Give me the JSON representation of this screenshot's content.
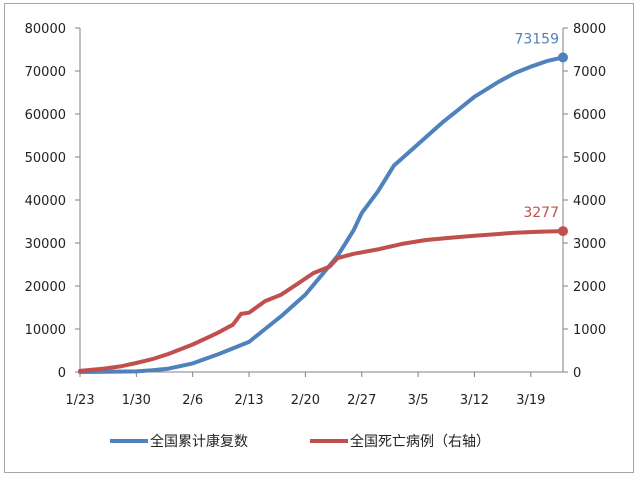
{
  "chart_data": {
    "type": "line",
    "x_tick_labels": [
      "1/23",
      "1/30",
      "2/6",
      "2/13",
      "2/20",
      "2/27",
      "3/5",
      "3/12",
      "3/19"
    ],
    "x_start": "1/23",
    "x_end": "3/23",
    "y_left": {
      "min": 0,
      "max": 80000,
      "ticks": [
        "0",
        "10000",
        "20000",
        "30000",
        "40000",
        "50000",
        "60000",
        "70000",
        "80000"
      ]
    },
    "y_right": {
      "min": 0,
      "max": 8000,
      "ticks": [
        "0",
        "1000",
        "2000",
        "3000",
        "4000",
        "5000",
        "6000",
        "7000",
        "8000"
      ]
    },
    "grid": false,
    "legend_position": "bottom",
    "series": [
      {
        "name": "全国累计康复数",
        "axis": "left",
        "color": "#4F81BD",
        "end_label": "73159",
        "points": [
          [
            "1/23",
            0
          ],
          [
            "1/26",
            50
          ],
          [
            "1/30",
            150
          ],
          [
            "2/1",
            400
          ],
          [
            "2/3",
            800
          ],
          [
            "2/6",
            2000
          ],
          [
            "2/9",
            4000
          ],
          [
            "2/11",
            5500
          ],
          [
            "2/13",
            7000
          ],
          [
            "2/15",
            10000
          ],
          [
            "2/17",
            13000
          ],
          [
            "2/20",
            18000
          ],
          [
            "2/22",
            22500
          ],
          [
            "2/24",
            27000
          ],
          [
            "2/25",
            30000
          ],
          [
            "2/26",
            33000
          ],
          [
            "2/27",
            37000
          ],
          [
            "2/29",
            42000
          ],
          [
            "3/2",
            48000
          ],
          [
            "3/5",
            53000
          ],
          [
            "3/8",
            58000
          ],
          [
            "3/10",
            61000
          ],
          [
            "3/12",
            64000
          ],
          [
            "3/15",
            67500
          ],
          [
            "3/17",
            69500
          ],
          [
            "3/19",
            71000
          ],
          [
            "3/21",
            72300
          ],
          [
            "3/23",
            73159
          ]
        ]
      },
      {
        "name": "全国死亡病例（右轴）",
        "axis": "right",
        "color": "#C0504D",
        "end_label": "3277",
        "points": [
          [
            "1/23",
            25
          ],
          [
            "1/26",
            80
          ],
          [
            "1/28",
            130
          ],
          [
            "1/30",
            210
          ],
          [
            "2/1",
            300
          ],
          [
            "2/3",
            420
          ],
          [
            "2/6",
            640
          ],
          [
            "2/9",
            900
          ],
          [
            "2/11",
            1100
          ],
          [
            "2/12",
            1350
          ],
          [
            "2/13",
            1380
          ],
          [
            "2/15",
            1650
          ],
          [
            "2/17",
            1800
          ],
          [
            "2/19",
            2050
          ],
          [
            "2/21",
            2300
          ],
          [
            "2/23",
            2450
          ],
          [
            "2/24",
            2650
          ],
          [
            "2/26",
            2750
          ],
          [
            "2/29",
            2850
          ],
          [
            "3/3",
            2980
          ],
          [
            "3/6",
            3070
          ],
          [
            "3/9",
            3120
          ],
          [
            "3/12",
            3170
          ],
          [
            "3/15",
            3210
          ],
          [
            "3/17",
            3240
          ],
          [
            "3/20",
            3260
          ],
          [
            "3/23",
            3277
          ]
        ]
      }
    ]
  }
}
